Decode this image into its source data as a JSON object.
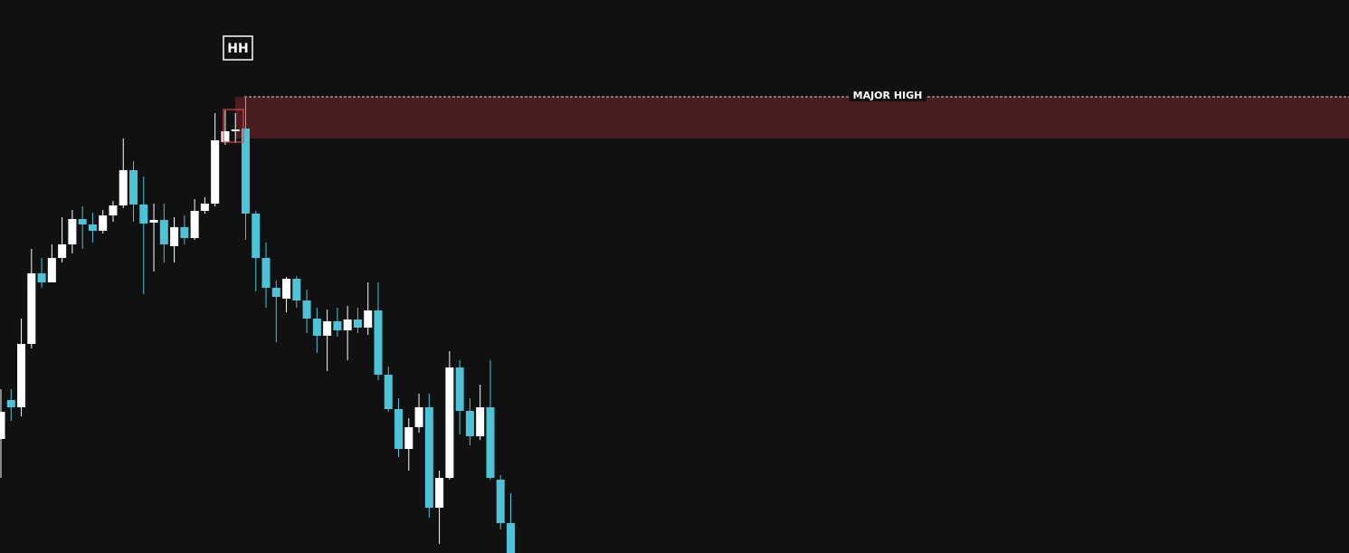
{
  "chart_data": {
    "type": "candlestick",
    "ylim": [
      0,
      611
    ],
    "up_color": "#ffffff",
    "down_color": "#4cc3d6",
    "open": [
      126,
      169,
      161,
      231,
      309,
      299,
      326,
      341,
      369,
      363,
      356,
      373,
      384,
      423,
      385,
      365,
      368,
      339,
      360,
      348,
      378,
      386,
      454,
      466,
      469,
      375,
      326,
      293,
      281,
      303,
      279,
      259,
      240,
      256,
      246,
      258,
      249,
      268,
      197,
      159,
      115,
      139,
      161,
      50,
      83,
      205,
      157,
      129,
      161,
      81,
      33
    ],
    "high": [
      181,
      181,
      259,
      336,
      326,
      341,
      371,
      379,
      383,
      376,
      379,
      389,
      458,
      433,
      416,
      386,
      386,
      371,
      373,
      391,
      393,
      486,
      489,
      486,
      503,
      378,
      343,
      301,
      305,
      306,
      291,
      271,
      269,
      271,
      273,
      271,
      299,
      299,
      206,
      171,
      149,
      176,
      176,
      91,
      223,
      213,
      171,
      186,
      213,
      86,
      66
    ],
    "low": [
      83,
      146,
      151,
      226,
      293,
      299,
      321,
      331,
      336,
      343,
      353,
      366,
      381,
      366,
      286,
      311,
      321,
      321,
      341,
      346,
      375,
      383,
      451,
      453,
      346,
      289,
      271,
      233,
      266,
      271,
      243,
      221,
      201,
      239,
      213,
      243,
      241,
      191,
      156,
      106,
      91,
      133,
      39,
      10,
      81,
      131,
      119,
      125,
      81,
      26,
      0
    ],
    "close": [
      156,
      161,
      231,
      309,
      299,
      326,
      341,
      369,
      363,
      356,
      373,
      384,
      423,
      385,
      364,
      368,
      341,
      360,
      348,
      378,
      386,
      456,
      466,
      468,
      375,
      326,
      293,
      283,
      303,
      279,
      259,
      240,
      256,
      246,
      258,
      249,
      268,
      197,
      159,
      115,
      139,
      161,
      50,
      83,
      205,
      157,
      129,
      161,
      83,
      33,
      0
    ],
    "zone": {
      "label": "MAJOR HIGH",
      "top": 504,
      "bottom": 458,
      "color": "#4a1e21",
      "line_color": "#d0d0d0"
    },
    "marker": {
      "label": "HH"
    }
  }
}
